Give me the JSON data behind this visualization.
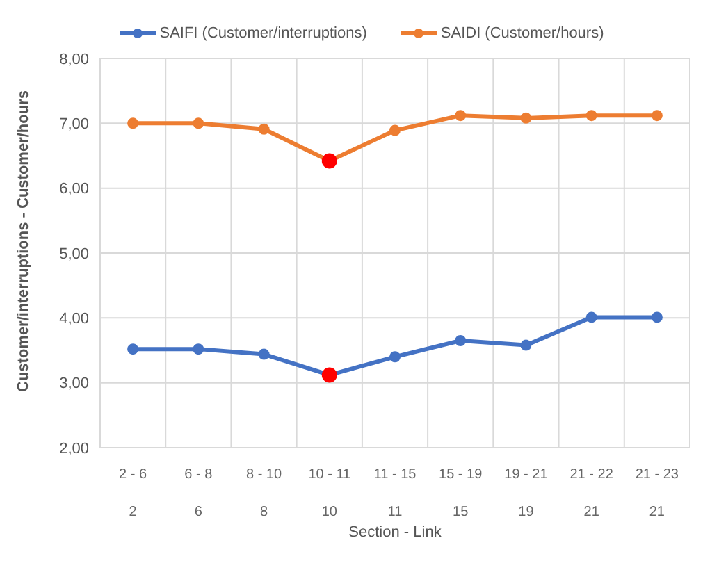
{
  "chart_data": {
    "type": "line",
    "xlabel": "Section - Link",
    "ylabel": "Customer/interruptions - Customer/hours",
    "categories": [
      "2 - 6\n2",
      "6 - 8\n6",
      "8 - 10\n8",
      "10 - 11\n10",
      "11 - 15\n11",
      "15 - 19\n15",
      "19 - 21\n19",
      "21 - 22\n21",
      "21 - 23\n21"
    ],
    "series": [
      {
        "name": "SAIFI (Customer/interruptions)",
        "color": "#4472c4",
        "colors": [
          "#4472c4",
          "#4472c4",
          "#4472c4",
          "#ff0000",
          "#4472c4",
          "#4472c4",
          "#4472c4",
          "#4472c4",
          "#4472c4"
        ],
        "values": [
          3.52,
          3.52,
          3.44,
          3.12,
          3.4,
          3.65,
          3.58,
          4.01,
          4.01
        ]
      },
      {
        "name": "SAIDI (Customer/hours)",
        "color": "#ed7d31",
        "colors": [
          "#ed7d31",
          "#ed7d31",
          "#ed7d31",
          "#ff0000",
          "#ed7d31",
          "#ed7d31",
          "#ed7d31",
          "#ed7d31",
          "#ed7d31"
        ],
        "values": [
          7.0,
          7.0,
          6.91,
          6.42,
          6.89,
          7.12,
          7.08,
          7.12,
          7.12
        ]
      }
    ],
    "ylim": [
      2,
      8
    ],
    "yticks": [
      {
        "value": 2,
        "label": "2,00"
      },
      {
        "value": 3,
        "label": "3,00"
      },
      {
        "value": 4,
        "label": "4,00"
      },
      {
        "value": 5,
        "label": "5,00"
      },
      {
        "value": 6,
        "label": "6,00"
      },
      {
        "value": 7,
        "label": "7,00"
      },
      {
        "value": 8,
        "label": "8,00"
      }
    ],
    "grid": true,
    "legend": "top",
    "marker": "circle",
    "line_style": "solid"
  }
}
